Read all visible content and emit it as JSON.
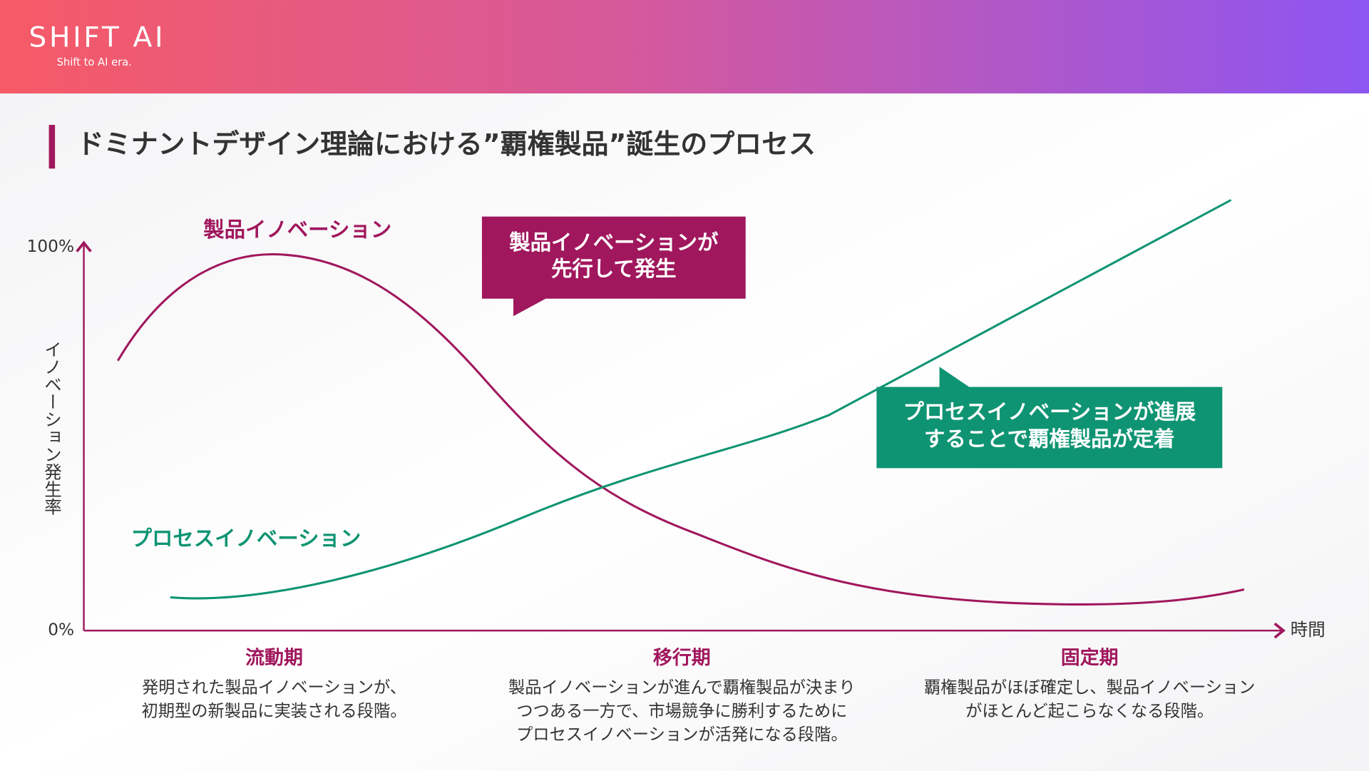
{
  "header": {
    "logo": "SHIFT AI",
    "tagline": "Shift to AI era."
  },
  "title": "ドミナントデザイン理論における”覇権製品”誕生のプロセス",
  "diagram": {
    "y_axis_label": "イノベーション発生率",
    "y_top": "100%",
    "y_bottom": "0%",
    "x_axis_label": "時間",
    "curves": [
      {
        "label": "製品イノベーション"
      },
      {
        "label": "プロセスイノベーション"
      }
    ],
    "callouts": [
      {
        "lines": [
          "製品イノベーションが",
          "先行して発生"
        ]
      },
      {
        "lines": [
          "プロセスイノベーションが進展",
          "することで覇権製品が定着"
        ]
      }
    ],
    "phases": [
      {
        "name": "流動期",
        "description": [
          "発明された製品イノベーションが、",
          "初期型の新製品に実装される段階。"
        ]
      },
      {
        "name": "移行期",
        "description": [
          "製品イノベーションが進んで覇権製品が決まり",
          "つつある一方で、市場競争に勝利するために",
          "プロセスイノベーションが活発になる段階。"
        ]
      },
      {
        "name": "固定期",
        "description": [
          "覇権製品がほぼ確定し、製品イノベーション",
          "がほとんど起こらなくなる段階。"
        ]
      }
    ]
  }
}
